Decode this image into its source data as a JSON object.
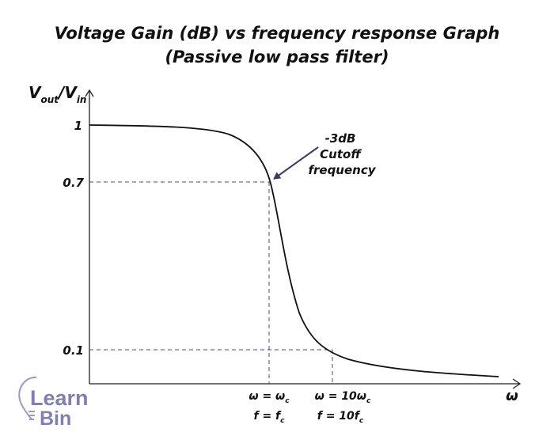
{
  "title": {
    "line1": "Voltage Gain (dB) vs frequency response Graph",
    "line2": "(Passive low pass filter)"
  },
  "y_axis": {
    "label_main": "V",
    "label_sub1": "out",
    "label_slash": "/V",
    "label_sub2": "in",
    "ticks": [
      "1",
      "0.7",
      "0.1"
    ]
  },
  "x_axis": {
    "label": "ω",
    "marks": [
      {
        "omega": "ω = ω",
        "omega_sub": "c",
        "freq": "f = f",
        "freq_sub": "c"
      },
      {
        "omega": "ω = 10ω",
        "omega_sub": "c",
        "freq": "f = 10f",
        "freq_sub": "c"
      }
    ]
  },
  "annotation": {
    "line1": "-3dB",
    "line2": "Cutoff",
    "line3": "frequency"
  },
  "logo": {
    "line1": "Learn",
    "line2": "Bin"
  },
  "colors": {
    "curve": "#111111",
    "dashed": "#4a4a8a",
    "arrow": "#3a3a66",
    "logo": "#8080b0"
  }
}
